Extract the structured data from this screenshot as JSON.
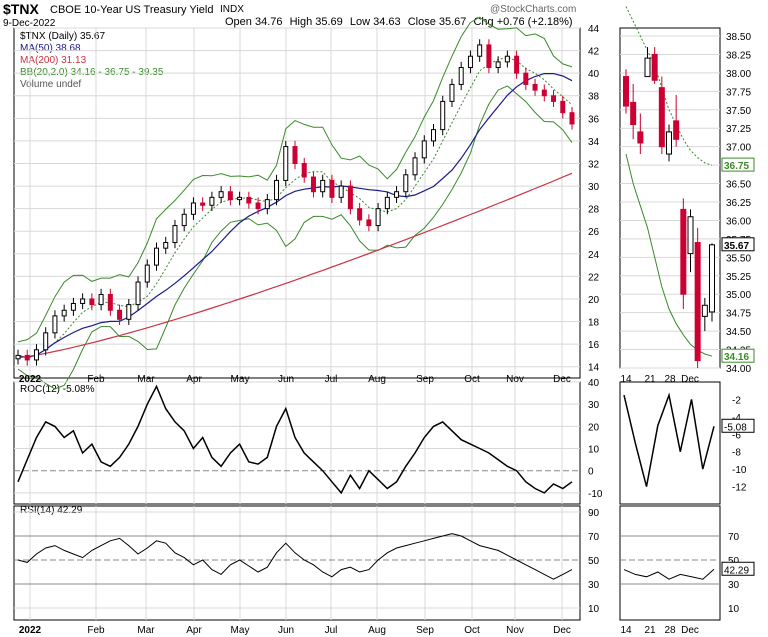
{
  "header": {
    "symbol": "$TNX",
    "name": "CBOE 10-Year US Treasury Yield",
    "exchange": "INDX",
    "date": "9-Dec-2022",
    "open_label": "Open",
    "open": "34.76",
    "high_label": "High",
    "high": "35.69",
    "low_label": "Low",
    "low": "34.63",
    "close_label": "Close",
    "close": "35.67",
    "chg_label": "Chg",
    "chg": "+0.76 (+2.18%)",
    "watermark": "@StockCharts.com"
  },
  "legend": {
    "price": "$TNX (Daily) 35.67",
    "ma50": "MA(50) 38.68",
    "ma200": "MA(200) 31.13",
    "bb": "BB(20,2.0) 34.16 - 36.75 - 39.35",
    "volume": "Volume undef"
  },
  "colors": {
    "up": "#000000",
    "down": "#cc0033",
    "ma50": "#1a1a8c",
    "ma200": "#cc3344",
    "bb": "#3a8a2a",
    "grid": "#d8d8d8",
    "ref": "#888888"
  },
  "chart_data": [
    {
      "type": "candlestick",
      "name": "main",
      "ylim": [
        13,
        44
      ],
      "y_ticks": [
        14,
        16,
        18,
        20,
        22,
        24,
        26,
        28,
        30,
        32,
        34,
        36,
        38,
        40,
        42,
        44
      ],
      "x_labels": [
        "2022",
        "Feb",
        "Mar",
        "Apr",
        "May",
        "Jun",
        "Jul",
        "Aug",
        "Sep",
        "Oct",
        "Nov",
        "Dec"
      ],
      "close_path": [
        15.0,
        14.6,
        15.5,
        17.0,
        18.5,
        19.0,
        19.6,
        20.0,
        19.5,
        20.4,
        19.0,
        18.2,
        19.5,
        21.5,
        23.0,
        24.5,
        25.0,
        26.5,
        27.5,
        28.5,
        28.3,
        29.0,
        29.5,
        28.8,
        29.0,
        28.5,
        28.0,
        28.8,
        30.5,
        33.5,
        32.0,
        30.8,
        29.5,
        30.5,
        29.0,
        30.0,
        28.0,
        27.0,
        26.5,
        28.0,
        29.0,
        29.5,
        31.0,
        32.5,
        34.0,
        35.0,
        37.5,
        39.0,
        40.5,
        41.5,
        42.5,
        40.5,
        41.0,
        41.5,
        40.0,
        39.0,
        38.5,
        38.0,
        37.5,
        36.5,
        35.5
      ],
      "last_close": 35.67
    },
    {
      "type": "candlestick",
      "name": "zoom",
      "ylim": [
        34,
        38.5
      ],
      "y_ticks": [
        34.0,
        34.25,
        34.5,
        34.75,
        35.0,
        35.25,
        35.5,
        35.75,
        36.0,
        36.25,
        36.5,
        36.75,
        37.0,
        37.25,
        37.5,
        37.75,
        38.0,
        38.25,
        38.5
      ],
      "x_labels": [
        "14",
        "21",
        "28",
        "Dec"
      ],
      "tags": {
        "close": "35.67",
        "bb_upper": "36.75",
        "bb_lower": "34.16"
      },
      "candles": [
        {
          "o": 37.95,
          "h": 38.05,
          "l": 37.45,
          "c": 37.55
        },
        {
          "o": 37.6,
          "h": 37.85,
          "l": 37.1,
          "c": 37.3
        },
        {
          "o": 37.2,
          "h": 37.45,
          "l": 36.9,
          "c": 37.05
        },
        {
          "o": 37.95,
          "h": 38.35,
          "l": 37.95,
          "c": 38.2
        },
        {
          "o": 38.25,
          "h": 38.35,
          "l": 37.85,
          "c": 37.9
        },
        {
          "o": 37.8,
          "h": 37.95,
          "l": 36.9,
          "c": 37.0
        },
        {
          "o": 36.9,
          "h": 37.3,
          "l": 36.8,
          "c": 37.2
        },
        {
          "o": 37.35,
          "h": 37.7,
          "l": 37.0,
          "c": 37.1
        },
        {
          "o": 36.15,
          "h": 36.3,
          "l": 34.8,
          "c": 35.0
        },
        {
          "o": 35.55,
          "h": 36.15,
          "l": 35.3,
          "c": 36.05
        },
        {
          "o": 35.7,
          "h": 35.9,
          "l": 34.0,
          "c": 34.1
        },
        {
          "o": 34.7,
          "h": 34.95,
          "l": 34.5,
          "c": 34.85
        },
        {
          "o": 34.76,
          "h": 35.69,
          "l": 34.63,
          "c": 35.67
        }
      ]
    },
    {
      "type": "line",
      "name": "ROC",
      "label": "ROC(12) -5.08%",
      "ylim": [
        -15,
        40
      ],
      "y_ticks": [
        -10,
        0,
        10,
        20,
        30,
        40
      ],
      "ref_value": 0,
      "values": [
        -5,
        5,
        15,
        22,
        20,
        15,
        18,
        8,
        12,
        4,
        2,
        6,
        12,
        20,
        30,
        38,
        28,
        22,
        18,
        10,
        15,
        6,
        2,
        8,
        12,
        4,
        3,
        6,
        20,
        28,
        15,
        8,
        4,
        0,
        -5,
        -10,
        -2,
        -8,
        0,
        -4,
        -8,
        -5,
        2,
        8,
        15,
        20,
        22,
        18,
        14,
        12,
        10,
        8,
        5,
        2,
        0,
        -5,
        -8,
        -10,
        -6,
        -8,
        -5
      ]
    },
    {
      "type": "line",
      "name": "ROC-zoom",
      "label": "-5.08",
      "ylim": [
        -14,
        0
      ],
      "y_ticks": [
        -2,
        -4,
        -6,
        -8,
        -10,
        -12
      ],
      "values": [
        -1.5,
        -7,
        -12,
        -5,
        -1.5,
        -8,
        -2,
        -10,
        -5.08
      ]
    },
    {
      "type": "line",
      "name": "RSI",
      "label": "RSI(14) 42.29",
      "ylim": [
        0,
        95
      ],
      "y_ticks": [
        10,
        30,
        50,
        70,
        90
      ],
      "ref_values": [
        30,
        50,
        70
      ],
      "values": [
        50,
        48,
        55,
        60,
        62,
        58,
        55,
        52,
        58,
        62,
        66,
        68,
        62,
        55,
        60,
        66,
        64,
        56,
        52,
        46,
        50,
        42,
        38,
        46,
        50,
        45,
        40,
        44,
        56,
        64,
        56,
        50,
        46,
        40,
        36,
        42,
        44,
        40,
        42,
        50,
        56,
        60,
        62,
        64,
        66,
        68,
        70,
        72,
        70,
        66,
        62,
        60,
        58,
        54,
        50,
        46,
        42,
        38,
        34,
        38,
        42
      ]
    },
    {
      "type": "line",
      "name": "RSI-zoom",
      "label": "42.29",
      "ylim": [
        20,
        60
      ],
      "y_ticks": [
        30,
        50
      ],
      "values": [
        42,
        38,
        36,
        40,
        34,
        38,
        36,
        34,
        42.29
      ]
    }
  ]
}
